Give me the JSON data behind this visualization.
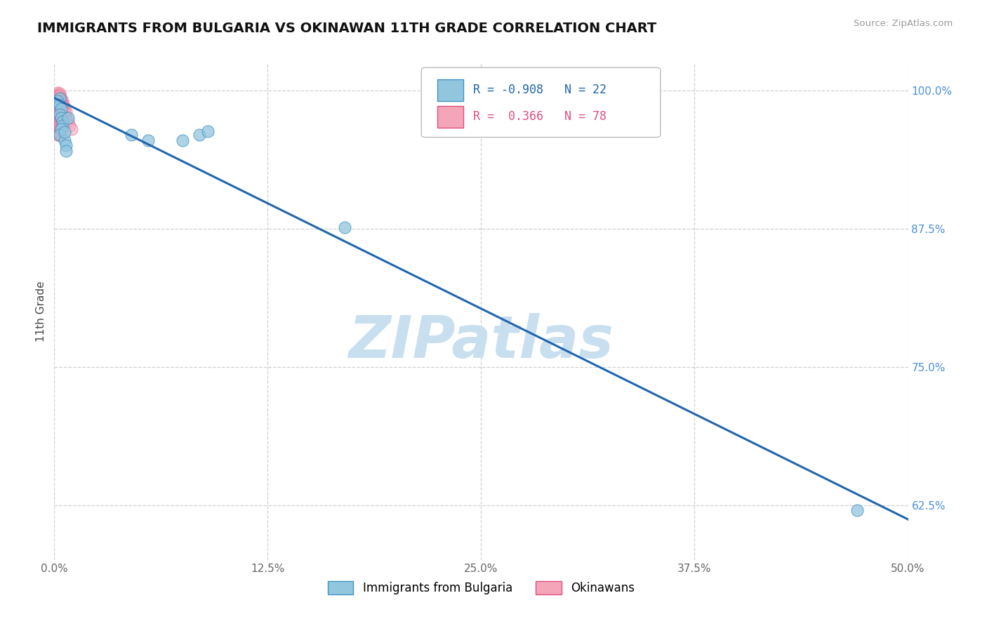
{
  "title": "IMMIGRANTS FROM BULGARIA VS OKINAWAN 11TH GRADE CORRELATION CHART",
  "source_text": "Source: ZipAtlas.com",
  "ylabel": "11th Grade",
  "xlim": [
    0.0,
    0.5
  ],
  "ylim": [
    0.575,
    1.025
  ],
  "xtick_values": [
    0.0,
    0.125,
    0.25,
    0.375,
    0.5
  ],
  "xtick_labels": [
    "0.0%",
    "12.5%",
    "25.0%",
    "37.5%",
    "50.0%"
  ],
  "ytick_values": [
    0.625,
    0.75,
    0.875,
    1.0
  ],
  "ytick_labels": [
    "62.5%",
    "75.0%",
    "87.5%",
    "100.0%"
  ],
  "blue_color": "#92c5de",
  "blue_edge": "#4393c3",
  "pink_color": "#f4a5b8",
  "pink_edge": "#e05080",
  "trend_color": "#2166ac",
  "watermark": "ZIPatlas",
  "watermark_color": "#c8dff0",
  "legend_r1": "R = -0.908",
  "legend_n1": "N = 22",
  "legend_r2": "R =  0.366",
  "legend_n2": "N = 78",
  "legend_blue_color": "#2166ac",
  "legend_pink_color": "#e05080",
  "blue_x": [
    0.003,
    0.002,
    0.003,
    0.004,
    0.003,
    0.004,
    0.005,
    0.005,
    0.004,
    0.003,
    0.006,
    0.007,
    0.008,
    0.006,
    0.007,
    0.045,
    0.055,
    0.075,
    0.085,
    0.09,
    0.17,
    0.47
  ],
  "blue_y": [
    0.993,
    0.99,
    0.987,
    0.983,
    0.978,
    0.975,
    0.972,
    0.968,
    0.965,
    0.96,
    0.955,
    0.95,
    0.975,
    0.962,
    0.945,
    0.96,
    0.955,
    0.955,
    0.96,
    0.963,
    0.876,
    0.62
  ],
  "pink_x": [
    0.001,
    0.001,
    0.001,
    0.001,
    0.001,
    0.001,
    0.001,
    0.001,
    0.001,
    0.001,
    0.002,
    0.002,
    0.002,
    0.002,
    0.002,
    0.002,
    0.002,
    0.002,
    0.002,
    0.002,
    0.002,
    0.002,
    0.002,
    0.002,
    0.002,
    0.002,
    0.002,
    0.002,
    0.002,
    0.002,
    0.003,
    0.003,
    0.003,
    0.003,
    0.003,
    0.003,
    0.003,
    0.003,
    0.003,
    0.003,
    0.003,
    0.003,
    0.003,
    0.003,
    0.003,
    0.003,
    0.003,
    0.003,
    0.003,
    0.003,
    0.004,
    0.004,
    0.004,
    0.004,
    0.004,
    0.004,
    0.004,
    0.004,
    0.004,
    0.004,
    0.005,
    0.005,
    0.005,
    0.005,
    0.005,
    0.005,
    0.005,
    0.005,
    0.005,
    0.005,
    0.006,
    0.006,
    0.006,
    0.007,
    0.007,
    0.008,
    0.009,
    0.01
  ],
  "pink_y": [
    0.995,
    0.993,
    0.991,
    0.989,
    0.987,
    0.985,
    0.983,
    0.981,
    0.979,
    0.977,
    0.998,
    0.996,
    0.994,
    0.992,
    0.99,
    0.988,
    0.986,
    0.984,
    0.982,
    0.98,
    0.978,
    0.976,
    0.974,
    0.972,
    0.97,
    0.968,
    0.966,
    0.964,
    0.962,
    0.96,
    0.997,
    0.995,
    0.993,
    0.991,
    0.989,
    0.987,
    0.985,
    0.983,
    0.981,
    0.979,
    0.977,
    0.975,
    0.973,
    0.971,
    0.969,
    0.967,
    0.965,
    0.963,
    0.961,
    0.959,
    0.993,
    0.991,
    0.989,
    0.987,
    0.985,
    0.983,
    0.981,
    0.979,
    0.977,
    0.975,
    0.99,
    0.988,
    0.986,
    0.984,
    0.982,
    0.98,
    0.978,
    0.976,
    0.974,
    0.972,
    0.985,
    0.98,
    0.975,
    0.98,
    0.975,
    0.972,
    0.968,
    0.965
  ],
  "trend_x": [
    0.0,
    0.5
  ],
  "trend_y": [
    0.993,
    0.612
  ]
}
